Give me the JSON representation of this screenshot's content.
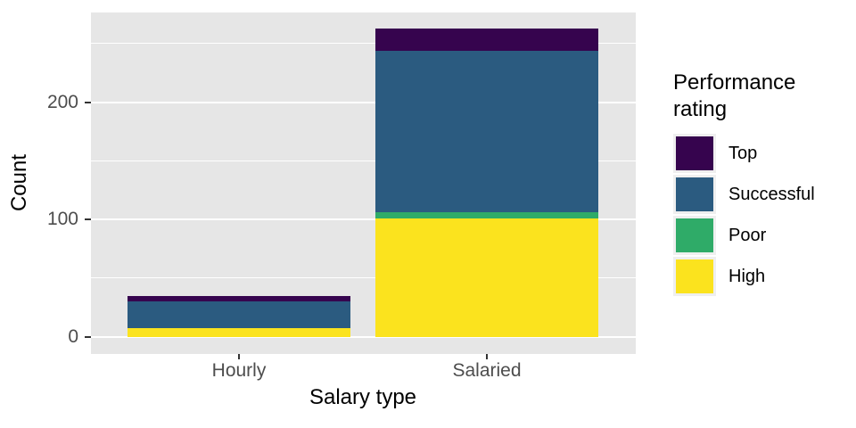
{
  "chart_data": {
    "type": "bar",
    "stacked": true,
    "xlabel": "Salary type",
    "ylabel": "Count",
    "categories": [
      "Hourly",
      "Salaried"
    ],
    "series": [
      {
        "name": "High",
        "color": "#FBE31E",
        "values": [
          7,
          101
        ]
      },
      {
        "name": "Poor",
        "color": "#2FAB68",
        "values": [
          0,
          5
        ]
      },
      {
        "name": "Successful",
        "color": "#2B5B80",
        "values": [
          23,
          138
        ]
      },
      {
        "name": "Top",
        "color": "#36044E",
        "values": [
          5,
          19
        ]
      }
    ],
    "stack_order_bottom_to_top": [
      "High",
      "Poor",
      "Successful",
      "Top"
    ],
    "y_axis": {
      "ticks": [
        0,
        100,
        200
      ],
      "minor_ticks": [
        50,
        150,
        250
      ],
      "range_shown": [
        -15,
        277
      ]
    },
    "grid": true,
    "legend": {
      "title": "Performance rating",
      "position": "right",
      "items_top_to_bottom": [
        "Top",
        "Successful",
        "Poor",
        "High"
      ]
    }
  },
  "colors": {
    "panel_background": "#E6E6E6",
    "gridline": "#FFFFFF",
    "axis_text": "#4D4D4D",
    "tick_mark": "#333333",
    "legend_key_background": "#EFEFEF"
  }
}
